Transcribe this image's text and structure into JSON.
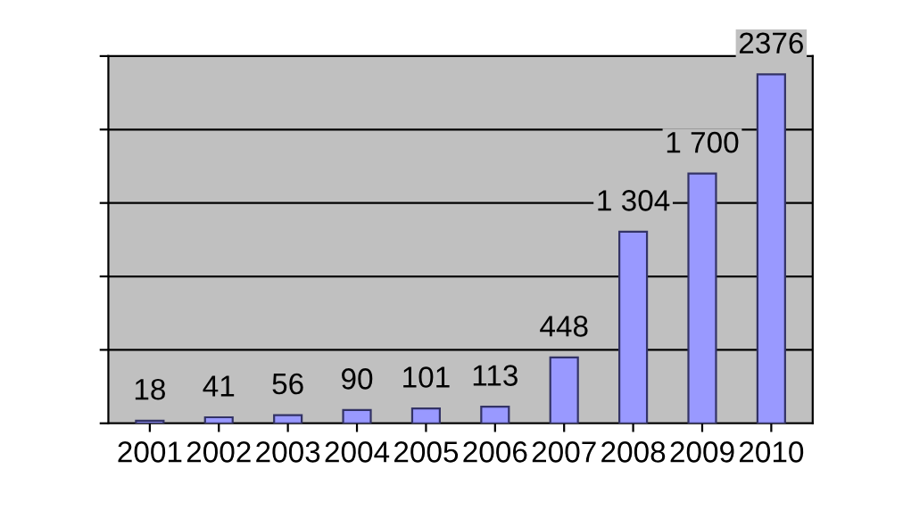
{
  "chart_data": {
    "type": "bar",
    "categories": [
      "2001",
      "2002",
      "2003",
      "2004",
      "2005",
      "2006",
      "2007",
      "2008",
      "2009",
      "2010"
    ],
    "values": [
      18,
      41,
      56,
      90,
      101,
      113,
      448,
      1304,
      1700,
      2376
    ],
    "value_labels": [
      "18",
      "41",
      "56",
      "90",
      "101",
      "113",
      "448",
      "1 304",
      "1 700",
      "2376"
    ],
    "color": "#9999ff",
    "ylim": [
      0,
      2500
    ],
    "yticks": [
      {
        "value": 0,
        "label": null
      },
      {
        "value": 500,
        "label": null
      },
      {
        "value": 1000,
        "label": null
      },
      {
        "value": 1500,
        "label": null
      },
      {
        "value": 2000,
        "label": null
      },
      {
        "value": 2500,
        "label": null
      }
    ],
    "tick_labels": "x",
    "grid": "y",
    "legend": false
  }
}
